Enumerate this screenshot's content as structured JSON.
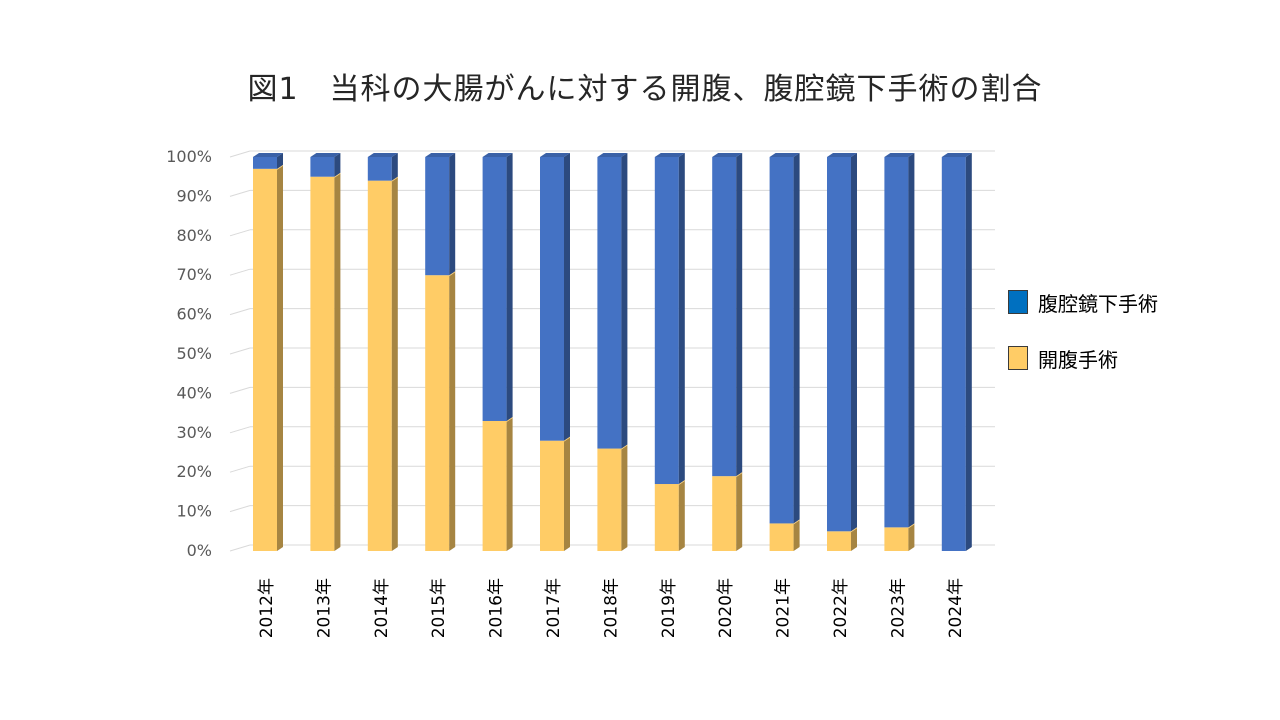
{
  "chart_data": {
    "type": "bar",
    "stacked": true,
    "normalized_percent": true,
    "title": "図1　当科の大腸がんに対する開腹、腹腔鏡下手術の割合",
    "xlabel": "",
    "ylabel": "",
    "ylim": [
      0,
      100
    ],
    "yticks": [
      "0%",
      "10%",
      "20%",
      "30%",
      "40%",
      "50%",
      "60%",
      "70%",
      "80%",
      "90%",
      "100%"
    ],
    "categories": [
      "2012年",
      "2013年",
      "2014年",
      "2015年",
      "2016年",
      "2017年",
      "2018年",
      "2019年",
      "2020年",
      "2021年",
      "2022年",
      "2023年",
      "2024年"
    ],
    "series": [
      {
        "name": "開腹手術",
        "color": "#FFCC66",
        "values": [
          97,
          95,
          94,
          70,
          33,
          28,
          26,
          17,
          19,
          7,
          5,
          6,
          0
        ]
      },
      {
        "name": "腹腔鏡下手術",
        "color": "#4472C4",
        "values": [
          3,
          5,
          6,
          30,
          67,
          72,
          74,
          83,
          81,
          93,
          95,
          94,
          100
        ]
      }
    ],
    "legend": {
      "position": "right",
      "items": [
        {
          "label": "腹腔鏡下手術",
          "color": "#0070C0"
        },
        {
          "label": "開腹手術",
          "color": "#FFCC66"
        }
      ]
    },
    "grid": true
  }
}
